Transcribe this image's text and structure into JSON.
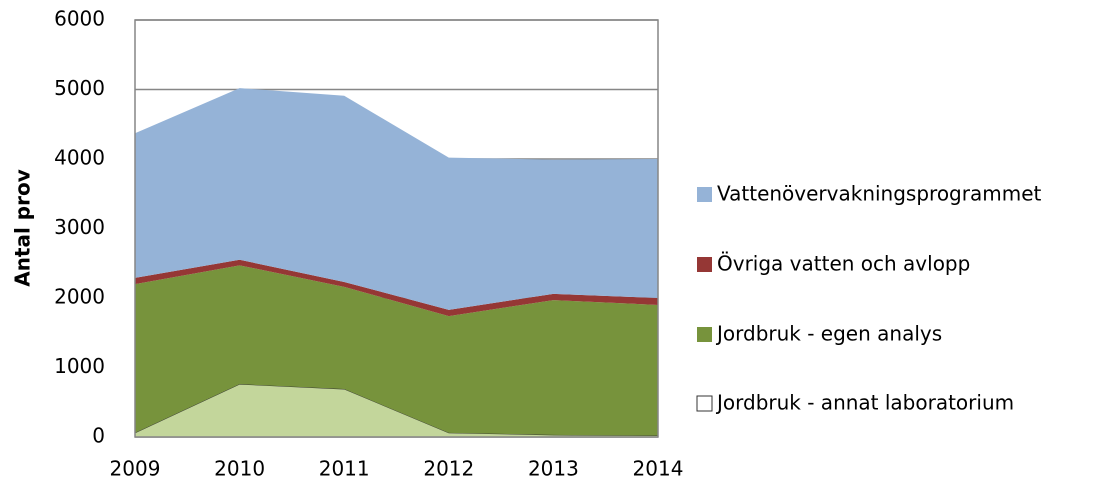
{
  "chart_data": {
    "type": "stacked-area",
    "y_label": "Antal prov",
    "categories": [
      "2009",
      "2010",
      "2011",
      "2012",
      "2013",
      "2014"
    ],
    "series": [
      {
        "name": "Jordbruk - annat laboratorium",
        "color": "#c3d69b",
        "values": [
          60,
          760,
          690,
          60,
          30,
          20
        ]
      },
      {
        "name": "Jordbruk - egen analys",
        "color": "#77933c",
        "values": [
          2140,
          1710,
          1470,
          1680,
          1940,
          1880
        ]
      },
      {
        "name": "Övriga vatten och avlopp",
        "color": "#953735",
        "values": [
          90,
          80,
          70,
          90,
          90,
          100
        ]
      },
      {
        "name": "Vattenövervakningsprogrammet",
        "color": "#95b3d7",
        "values": [
          2080,
          2470,
          2680,
          2190,
          1930,
          2000
        ]
      }
    ],
    "ylim": [
      0,
      6000
    ],
    "yticks": [
      0,
      1000,
      2000,
      3000,
      4000,
      5000,
      6000
    ],
    "grid": true,
    "legend": "right"
  }
}
